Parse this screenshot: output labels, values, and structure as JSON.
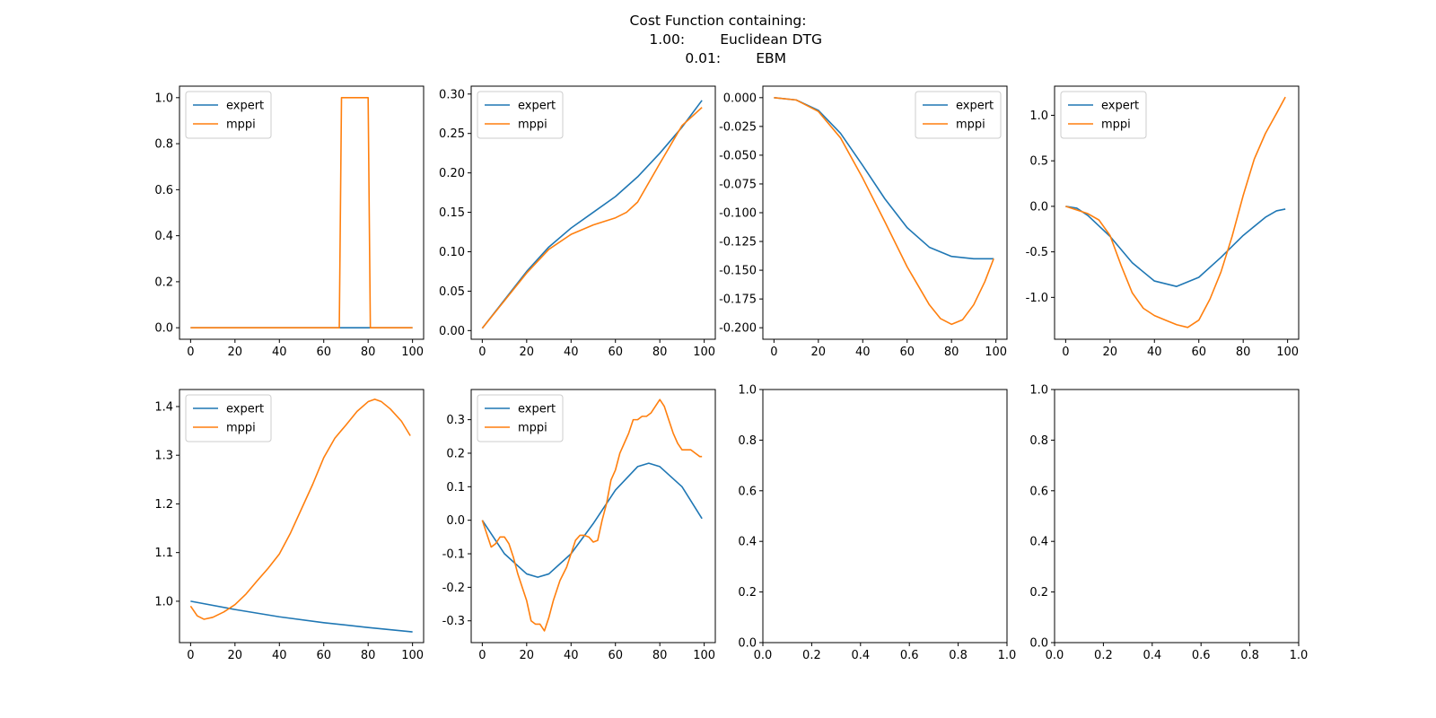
{
  "title_lines": [
    "Cost Function containing:",
    "\t1.00:\tEuclidean DTG",
    "\t0.01:\tEBM"
  ],
  "colors": {
    "expert": "#1f77b4",
    "mppi": "#ff7f0e",
    "axes": "#000000",
    "background": "#ffffff"
  },
  "chart_data": [
    {
      "type": "line",
      "legend_position": "upper left",
      "grid": false,
      "xlim": [
        -5,
        105
      ],
      "ylim": [
        -0.05,
        1.05
      ],
      "xticks": [
        0,
        20,
        40,
        60,
        80,
        100
      ],
      "yticks": [
        0.0,
        0.2,
        0.4,
        0.6,
        0.8,
        1.0
      ],
      "xtick_labels": [
        "0",
        "20",
        "40",
        "60",
        "80",
        "100"
      ],
      "ytick_labels": [
        "0.0",
        "0.2",
        "0.4",
        "0.6",
        "0.8",
        "1.0"
      ],
      "series": [
        {
          "name": "expert",
          "x": [
            0,
            100
          ],
          "y": [
            0,
            0
          ]
        },
        {
          "name": "mppi",
          "x": [
            0,
            67,
            68,
            80,
            81,
            100
          ],
          "y": [
            0,
            0,
            1,
            1,
            0,
            0
          ]
        }
      ]
    },
    {
      "type": "line",
      "legend_position": "upper left",
      "grid": false,
      "xlim": [
        -5,
        105
      ],
      "ylim": [
        -0.011,
        0.31
      ],
      "xticks": [
        0,
        20,
        40,
        60,
        80,
        100
      ],
      "yticks": [
        0.0,
        0.05,
        0.1,
        0.15,
        0.2,
        0.25,
        0.3
      ],
      "xtick_labels": [
        "0",
        "20",
        "40",
        "60",
        "80",
        "100"
      ],
      "ytick_labels": [
        "0.00",
        "0.05",
        "0.10",
        "0.15",
        "0.20",
        "0.25",
        "0.30"
      ],
      "series": [
        {
          "name": "expert",
          "x": [
            0,
            10,
            20,
            30,
            40,
            50,
            60,
            70,
            80,
            90,
            99
          ],
          "y": [
            0.003,
            0.039,
            0.075,
            0.106,
            0.13,
            0.15,
            0.17,
            0.195,
            0.225,
            0.258,
            0.292
          ]
        },
        {
          "name": "mppi",
          "x": [
            0,
            10,
            20,
            30,
            40,
            50,
            60,
            65,
            70,
            80,
            90,
            99
          ],
          "y": [
            0.003,
            0.038,
            0.073,
            0.103,
            0.122,
            0.134,
            0.143,
            0.15,
            0.163,
            0.212,
            0.26,
            0.283
          ]
        }
      ]
    },
    {
      "type": "line",
      "legend_position": "upper right",
      "grid": false,
      "xlim": [
        -5,
        105
      ],
      "ylim": [
        -0.21,
        0.01
      ],
      "xticks": [
        0,
        20,
        40,
        60,
        80,
        100
      ],
      "yticks": [
        0.0,
        -0.025,
        -0.05,
        -0.075,
        -0.1,
        -0.125,
        -0.15,
        -0.175,
        -0.2
      ],
      "xtick_labels": [
        "0",
        "20",
        "40",
        "60",
        "80",
        "100"
      ],
      "ytick_labels": [
        "0.000",
        "-0.025",
        "-0.050",
        "-0.075",
        "-0.100",
        "-0.125",
        "-0.150",
        "-0.175",
        "-0.200"
      ],
      "series": [
        {
          "name": "expert",
          "x": [
            0,
            10,
            20,
            30,
            40,
            50,
            60,
            70,
            80,
            90,
            99
          ],
          "y": [
            0,
            -0.002,
            -0.011,
            -0.031,
            -0.059,
            -0.088,
            -0.113,
            -0.13,
            -0.138,
            -0.14,
            -0.14
          ]
        },
        {
          "name": "mppi",
          "x": [
            0,
            10,
            20,
            30,
            40,
            50,
            60,
            70,
            75,
            80,
            85,
            90,
            95,
            99
          ],
          "y": [
            0,
            -0.002,
            -0.012,
            -0.035,
            -0.07,
            -0.108,
            -0.147,
            -0.18,
            -0.192,
            -0.197,
            -0.193,
            -0.18,
            -0.16,
            -0.14
          ]
        }
      ]
    },
    {
      "type": "line",
      "legend_position": "upper left",
      "grid": false,
      "xlim": [
        -5,
        105
      ],
      "ylim": [
        -1.46,
        1.32
      ],
      "xticks": [
        0,
        20,
        40,
        60,
        80,
        100
      ],
      "yticks": [
        -1.0,
        -0.5,
        0.0,
        0.5,
        1.0
      ],
      "xtick_labels": [
        "0",
        "20",
        "40",
        "60",
        "80",
        "100"
      ],
      "ytick_labels": [
        "-1.0",
        "-0.5",
        "0.0",
        "0.5",
        "1.0"
      ],
      "series": [
        {
          "name": "expert",
          "x": [
            0,
            5,
            10,
            20,
            30,
            40,
            50,
            60,
            70,
            80,
            90,
            95,
            99
          ],
          "y": [
            0,
            -0.02,
            -0.1,
            -0.33,
            -0.62,
            -0.82,
            -0.88,
            -0.78,
            -0.56,
            -0.32,
            -0.12,
            -0.05,
            -0.03
          ]
        },
        {
          "name": "mppi",
          "x": [
            0,
            10,
            15,
            20,
            25,
            30,
            35,
            40,
            45,
            50,
            55,
            60,
            65,
            70,
            75,
            80,
            85,
            90,
            95,
            99
          ],
          "y": [
            0,
            -0.08,
            -0.15,
            -0.32,
            -0.65,
            -0.95,
            -1.12,
            -1.2,
            -1.25,
            -1.3,
            -1.33,
            -1.25,
            -1.02,
            -0.72,
            -0.33,
            0.12,
            0.52,
            0.8,
            1.02,
            1.2
          ]
        }
      ]
    },
    {
      "type": "line",
      "legend_position": "upper left",
      "grid": false,
      "xlim": [
        -5,
        105
      ],
      "ylim": [
        0.915,
        1.435
      ],
      "xticks": [
        0,
        20,
        40,
        60,
        80,
        100
      ],
      "yticks": [
        1.0,
        1.1,
        1.2,
        1.3,
        1.4
      ],
      "xtick_labels": [
        "0",
        "20",
        "40",
        "60",
        "80",
        "100"
      ],
      "ytick_labels": [
        "1.0",
        "1.1",
        "1.2",
        "1.3",
        "1.4"
      ],
      "series": [
        {
          "name": "expert",
          "x": [
            0,
            20,
            40,
            60,
            80,
            100
          ],
          "y": [
            1.0,
            0.983,
            0.968,
            0.956,
            0.946,
            0.937
          ]
        },
        {
          "name": "mppi",
          "x": [
            0,
            3,
            6,
            10,
            15,
            20,
            25,
            30,
            35,
            40,
            45,
            50,
            55,
            60,
            65,
            70,
            75,
            80,
            83,
            86,
            90,
            95,
            99
          ],
          "y": [
            0.99,
            0.97,
            0.963,
            0.967,
            0.978,
            0.993,
            1.015,
            1.042,
            1.068,
            1.097,
            1.14,
            1.19,
            1.24,
            1.295,
            1.335,
            1.362,
            1.39,
            1.41,
            1.415,
            1.41,
            1.395,
            1.37,
            1.34
          ]
        }
      ]
    },
    {
      "type": "line",
      "legend_position": "upper left",
      "grid": false,
      "xlim": [
        -5,
        105
      ],
      "ylim": [
        -0.365,
        0.39
      ],
      "xticks": [
        0,
        20,
        40,
        60,
        80,
        100
      ],
      "yticks": [
        -0.3,
        -0.2,
        -0.1,
        0.0,
        0.1,
        0.2,
        0.3
      ],
      "xtick_labels": [
        "0",
        "20",
        "40",
        "60",
        "80",
        "100"
      ],
      "ytick_labels": [
        "-0.3",
        "-0.2",
        "-0.1",
        "0.0",
        "0.1",
        "0.2",
        "0.3"
      ],
      "series": [
        {
          "name": "expert",
          "x": [
            0,
            10,
            20,
            25,
            30,
            40,
            50,
            60,
            70,
            75,
            80,
            90,
            99
          ],
          "y": [
            0,
            -0.1,
            -0.16,
            -0.17,
            -0.16,
            -0.1,
            -0.01,
            0.09,
            0.16,
            0.17,
            0.16,
            0.1,
            0.005
          ]
        },
        {
          "name": "mppi",
          "x": [
            0,
            2,
            4,
            6,
            8,
            10,
            12,
            14,
            16,
            18,
            20,
            22,
            24,
            26,
            28,
            30,
            32,
            35,
            38,
            40,
            42,
            44,
            46,
            48,
            50,
            52,
            54,
            56,
            58,
            60,
            62,
            64,
            66,
            68,
            70,
            72,
            74,
            76,
            78,
            80,
            82,
            84,
            86,
            88,
            90,
            92,
            94,
            96,
            98,
            99
          ],
          "y": [
            0,
            -0.04,
            -0.08,
            -0.07,
            -0.05,
            -0.05,
            -0.07,
            -0.11,
            -0.16,
            -0.2,
            -0.24,
            -0.3,
            -0.31,
            -0.31,
            -0.33,
            -0.29,
            -0.24,
            -0.18,
            -0.14,
            -0.1,
            -0.06,
            -0.045,
            -0.045,
            -0.05,
            -0.065,
            -0.06,
            0.0,
            0.05,
            0.12,
            0.15,
            0.2,
            0.23,
            0.26,
            0.3,
            0.3,
            0.31,
            0.31,
            0.32,
            0.34,
            0.36,
            0.34,
            0.3,
            0.26,
            0.23,
            0.21,
            0.21,
            0.21,
            0.2,
            0.19,
            0.19
          ]
        }
      ]
    },
    {
      "type": "line",
      "grid": false,
      "xlim": [
        0,
        1
      ],
      "ylim": [
        0,
        1
      ],
      "xticks": [
        0.0,
        0.2,
        0.4,
        0.6,
        0.8,
        1.0
      ],
      "yticks": [
        0.0,
        0.2,
        0.4,
        0.6,
        0.8,
        1.0
      ],
      "xtick_labels": [
        "0.0",
        "0.2",
        "0.4",
        "0.6",
        "0.8",
        "1.0"
      ],
      "ytick_labels": [
        "0.0",
        "0.2",
        "0.4",
        "0.6",
        "0.8",
        "1.0"
      ],
      "series": []
    },
    {
      "type": "line",
      "grid": false,
      "xlim": [
        0,
        1
      ],
      "ylim": [
        0,
        1
      ],
      "xticks": [
        0.0,
        0.2,
        0.4,
        0.6,
        0.8,
        1.0
      ],
      "yticks": [
        0.0,
        0.2,
        0.4,
        0.6,
        0.8,
        1.0
      ],
      "xtick_labels": [
        "0.0",
        "0.2",
        "0.4",
        "0.6",
        "0.8",
        "1.0"
      ],
      "ytick_labels": [
        "0.0",
        "0.2",
        "0.4",
        "0.6",
        "0.8",
        "1.0"
      ],
      "series": []
    }
  ]
}
